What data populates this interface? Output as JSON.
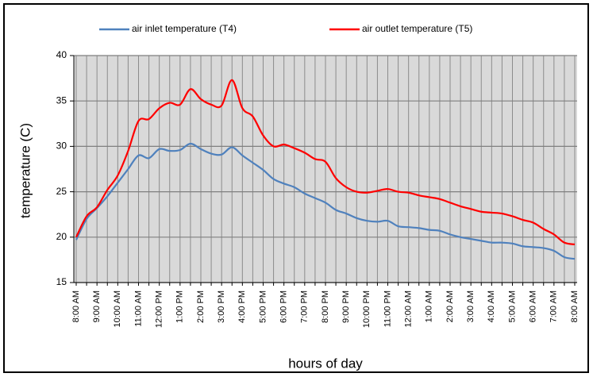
{
  "chart_data": {
    "type": "line",
    "xlabel": "hours of day",
    "ylabel": "temperature (C)",
    "categories": [
      "8:00 AM",
      null,
      "9:00 AM",
      null,
      "10:00 AM",
      null,
      "11:00 AM",
      null,
      "12:00 PM",
      null,
      "1:00 PM",
      null,
      "2:00 PM",
      null,
      "3:00 PM",
      null,
      "4:00 PM",
      null,
      "5:00 PM",
      null,
      "6:00 PM",
      null,
      "7:00 PM",
      null,
      "8:00 PM",
      null,
      "9:00 PM",
      null,
      "10:00 PM",
      null,
      "11:00 PM",
      null,
      "12:00 AM",
      null,
      "1:00 AM",
      null,
      "2:00 AM",
      null,
      "3:00 AM",
      null,
      "4:00 AM",
      null,
      "5:00 AM",
      null,
      "6:00 AM",
      null,
      "7:00 AM",
      null,
      "8:00 AM"
    ],
    "series": [
      {
        "name": "air inlet temperature (T4)",
        "color": "#4f81bd",
        "values": [
          19.7,
          22,
          23.2,
          24.5,
          26,
          27.5,
          29,
          28.7,
          29.7,
          29.5,
          29.6,
          30.3,
          29.7,
          29.2,
          29.1,
          29.9,
          29,
          28.2,
          27.4,
          26.4,
          25.9,
          25.5,
          24.8,
          24.3,
          23.8,
          23,
          22.6,
          22.1,
          21.8,
          21.7,
          21.8,
          21.2,
          21.1,
          21,
          20.8,
          20.7,
          20.3,
          20,
          19.8,
          19.6,
          19.4,
          19.4,
          19.3,
          19,
          18.9,
          18.8,
          18.5,
          17.8,
          17.6
        ]
      },
      {
        "name": "air outlet temperature (T5)",
        "color": "#ff0000",
        "values": [
          20,
          22.3,
          23.3,
          25.2,
          26.8,
          29.5,
          32.8,
          33,
          34.2,
          34.8,
          34.6,
          36.3,
          35.2,
          34.6,
          34.5,
          37.3,
          34.2,
          33.3,
          31.2,
          30,
          30.2,
          29.8,
          29.3,
          28.6,
          28.3,
          26.5,
          25.5,
          25,
          24.9,
          25.1,
          25.3,
          25,
          24.9,
          24.6,
          24.4,
          24.2,
          23.8,
          23.4,
          23.1,
          22.8,
          22.7,
          22.6,
          22.3,
          21.9,
          21.6,
          20.9,
          20.3,
          19.4,
          19.2
        ]
      }
    ],
    "ylim": [
      15,
      40
    ],
    "yticks": [
      15,
      20,
      25,
      30,
      35,
      40
    ],
    "grid": true,
    "legend": "top"
  }
}
